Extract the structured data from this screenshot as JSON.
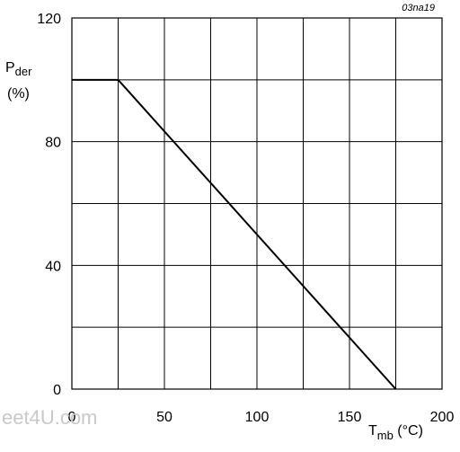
{
  "chart_data": {
    "type": "line",
    "figure_id": "03na19",
    "watermark": "eet4U.com",
    "xlabel": {
      "main": "T",
      "subscript": "mb",
      "unit": " (°C)"
    },
    "ylabel": {
      "main": "P",
      "subscript": "der",
      "unit": "(%)"
    },
    "xlim": [
      0,
      200
    ],
    "ylim": [
      0,
      120
    ],
    "xticks": [
      0,
      50,
      100,
      150,
      200
    ],
    "yticks": [
      0,
      40,
      80,
      120
    ],
    "x_gridlines": [
      0,
      25,
      50,
      75,
      100,
      125,
      150,
      175,
      200
    ],
    "y_gridlines": [
      0,
      20,
      40,
      60,
      80,
      100,
      120
    ],
    "grid": true,
    "series": [
      {
        "x": [
          0,
          25,
          175
        ],
        "y": [
          100,
          100,
          0
        ]
      }
    ],
    "colors": {
      "line": "#000000",
      "grid": "#000000",
      "watermark": "#c8c8c8"
    }
  }
}
